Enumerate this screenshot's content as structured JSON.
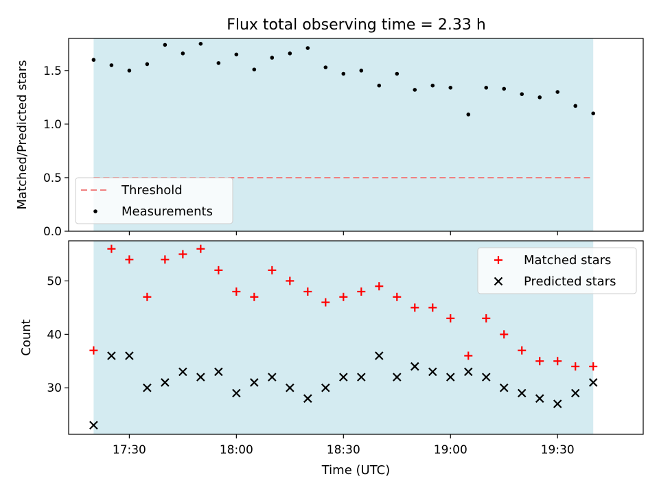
{
  "figure": {
    "title": "Flux total observing time = 2.33 h"
  },
  "chart_data": [
    {
      "type": "scatter",
      "ylabel": "Matched/Predicted stars",
      "xlabel": "",
      "ylim": [
        0,
        1.8
      ],
      "yticks": [
        0.0,
        0.5,
        1.0,
        1.5
      ],
      "ytick_labels": [
        "0.0",
        "0.5",
        "1.0",
        "1.5"
      ],
      "shaded_span": [
        "17:20",
        "19:40"
      ],
      "shade_color": "#d4ebf1",
      "threshold": {
        "name": "Threshold",
        "value": 0.5,
        "color": "#f08080"
      },
      "series": [
        {
          "name": "Measurements",
          "marker": "dot",
          "color": "#000000",
          "x": [
            "17:20",
            "17:25",
            "17:30",
            "17:35",
            "17:40",
            "17:45",
            "17:50",
            "17:55",
            "18:00",
            "18:05",
            "18:10",
            "18:15",
            "18:20",
            "18:25",
            "18:30",
            "18:35",
            "18:40",
            "18:45",
            "18:50",
            "18:55",
            "19:00",
            "19:05",
            "19:10",
            "19:15",
            "19:20",
            "19:25",
            "19:30",
            "19:35",
            "19:40"
          ],
          "values": [
            1.6,
            1.55,
            1.5,
            1.56,
            1.74,
            1.66,
            1.75,
            1.57,
            1.65,
            1.51,
            1.62,
            1.66,
            1.71,
            1.53,
            1.47,
            1.5,
            1.36,
            1.47,
            1.32,
            1.36,
            1.34,
            1.09,
            1.34,
            1.33,
            1.28,
            1.25,
            1.3,
            1.17,
            1.1
          ]
        }
      ],
      "legend": {
        "placement": "lower-left",
        "entries": [
          "Threshold",
          "Measurements"
        ]
      }
    },
    {
      "type": "scatter",
      "ylabel": "Count",
      "xlabel": "Time (UTC)",
      "ylim": [
        21.3,
        57.5
      ],
      "yticks": [
        30,
        40,
        50
      ],
      "ytick_labels": [
        "30",
        "40",
        "50"
      ],
      "xticks": [
        "17:30",
        "18:00",
        "18:30",
        "19:00",
        "19:30"
      ],
      "shaded_span": [
        "17:20",
        "19:40"
      ],
      "shade_color": "#d4ebf1",
      "series": [
        {
          "name": "Matched stars",
          "marker": "plus",
          "color": "#ff0000",
          "x": [
            "17:20",
            "17:25",
            "17:30",
            "17:35",
            "17:40",
            "17:45",
            "17:50",
            "17:55",
            "18:00",
            "18:05",
            "18:10",
            "18:15",
            "18:20",
            "18:25",
            "18:30",
            "18:35",
            "18:40",
            "18:45",
            "18:50",
            "18:55",
            "19:00",
            "19:05",
            "19:10",
            "19:15",
            "19:20",
            "19:25",
            "19:30",
            "19:35",
            "19:40"
          ],
          "values": [
            37,
            56,
            54,
            47,
            54,
            55,
            56,
            52,
            48,
            47,
            52,
            50,
            48,
            46,
            47,
            48,
            49,
            47,
            45,
            45,
            43,
            36,
            43,
            40,
            37,
            35,
            35,
            34,
            34
          ]
        },
        {
          "name": "Predicted stars",
          "marker": "x",
          "color": "#000000",
          "x": [
            "17:20",
            "17:25",
            "17:30",
            "17:35",
            "17:40",
            "17:45",
            "17:50",
            "17:55",
            "18:00",
            "18:05",
            "18:10",
            "18:15",
            "18:20",
            "18:25",
            "18:30",
            "18:35",
            "18:40",
            "18:45",
            "18:50",
            "18:55",
            "19:00",
            "19:05",
            "19:10",
            "19:15",
            "19:20",
            "19:25",
            "19:30",
            "19:35",
            "19:40"
          ],
          "values": [
            23,
            36,
            36,
            30,
            31,
            33,
            32,
            33,
            29,
            31,
            32,
            30,
            28,
            30,
            32,
            32,
            36,
            32,
            34,
            33,
            32,
            33,
            32,
            30,
            29,
            28,
            27,
            29,
            31
          ]
        }
      ],
      "legend": {
        "placement": "top-right",
        "entries": [
          "Matched stars",
          "Predicted stars"
        ]
      }
    }
  ]
}
